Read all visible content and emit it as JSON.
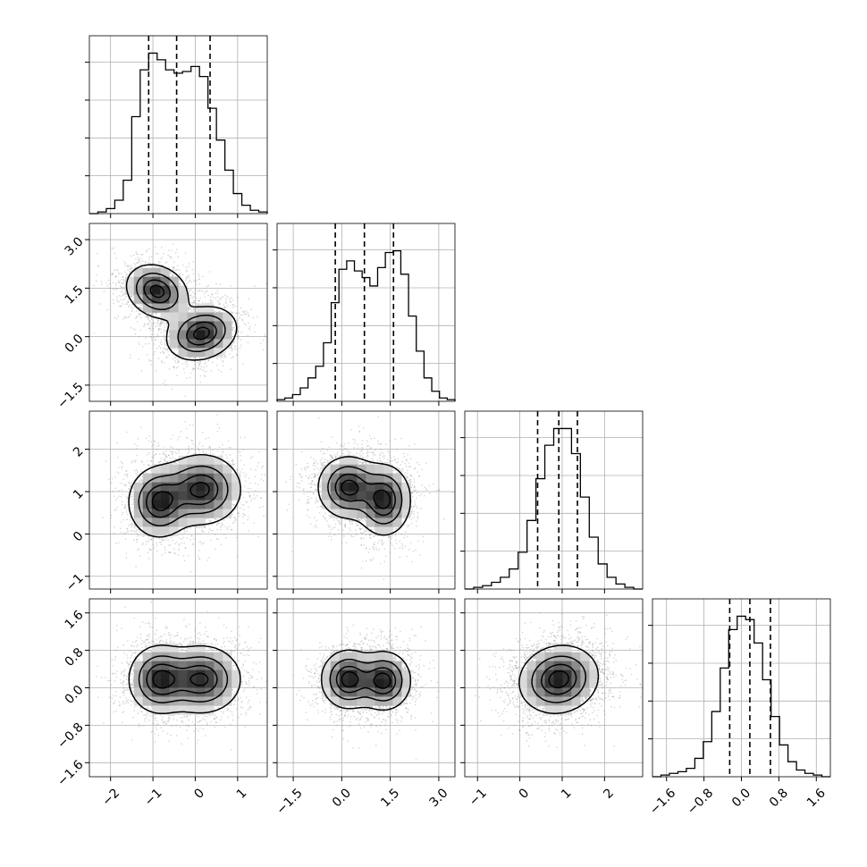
{
  "chart_data": {
    "type": "corner",
    "title": "",
    "variables": [
      {
        "name": "",
        "range": [
          -2.5,
          1.7
        ],
        "ticks": [
          -2,
          -1,
          0,
          1
        ],
        "tick_labels": [
          "−2",
          "−1",
          "0",
          "1"
        ],
        "quantiles": [
          -1.1,
          -0.44,
          0.35
        ],
        "hist": [
          0.0,
          0.01,
          0.03,
          0.08,
          0.2,
          0.58,
          0.86,
          0.96,
          0.92,
          0.86,
          0.84,
          0.85,
          0.88,
          0.82,
          0.63,
          0.44,
          0.26,
          0.12,
          0.05,
          0.02,
          0.01
        ]
      },
      {
        "name": "",
        "range": [
          -2.0,
          3.5
        ],
        "ticks": [
          -1.5,
          0.0,
          1.5,
          3.0
        ],
        "tick_labels": [
          "−1.5",
          "0.0",
          "1.5",
          "3.0"
        ],
        "quantiles": [
          -0.2,
          0.7,
          1.6
        ],
        "hist": [
          0.01,
          0.02,
          0.04,
          0.08,
          0.14,
          0.21,
          0.35,
          0.59,
          0.79,
          0.84,
          0.78,
          0.74,
          0.69,
          0.8,
          0.89,
          0.9,
          0.76,
          0.51,
          0.3,
          0.14,
          0.06,
          0.02,
          0.01
        ]
      },
      {
        "name": "",
        "range": [
          -1.3,
          2.9
        ],
        "ticks": [
          -1,
          0,
          1,
          2
        ],
        "tick_labels": [
          "−1",
          "0",
          "1",
          "2"
        ],
        "quantiles": [
          0.42,
          0.92,
          1.36
        ],
        "hist": [
          0.0,
          0.01,
          0.02,
          0.04,
          0.07,
          0.12,
          0.22,
          0.41,
          0.66,
          0.86,
          0.96,
          0.96,
          0.81,
          0.55,
          0.31,
          0.15,
          0.07,
          0.03,
          0.01,
          0.0
        ]
      },
      {
        "name": "",
        "range": [
          -1.9,
          1.9
        ],
        "ticks": [
          -1.6,
          -0.8,
          0.0,
          0.8,
          1.6
        ],
        "tick_labels": [
          "−1.6",
          "−0.8",
          "0.0",
          "0.8",
          "1.6"
        ],
        "quantiles": [
          -0.25,
          0.18,
          0.62
        ],
        "hist": [
          0.0,
          0.01,
          0.02,
          0.03,
          0.05,
          0.11,
          0.21,
          0.39,
          0.65,
          0.88,
          0.96,
          0.94,
          0.8,
          0.58,
          0.36,
          0.19,
          0.09,
          0.04,
          0.02,
          0.01,
          0.0
        ]
      }
    ],
    "pairs": [
      {
        "x": 0,
        "y": 1,
        "modes": [
          {
            "mx": -0.9,
            "my": 1.4,
            "sx": 0.35,
            "sy": 0.4,
            "r": -0.2
          },
          {
            "mx": 0.15,
            "my": 0.1,
            "sx": 0.4,
            "sy": 0.4,
            "r": 0.2
          }
        ]
      },
      {
        "x": 0,
        "y": 2,
        "modes": [
          {
            "mx": -0.85,
            "my": 0.75,
            "sx": 0.35,
            "sy": 0.4,
            "r": 0.0
          },
          {
            "mx": 0.15,
            "my": 1.05,
            "sx": 0.45,
            "sy": 0.4,
            "r": 0.0
          }
        ]
      },
      {
        "x": 1,
        "y": 2,
        "modes": [
          {
            "mx": 0.2,
            "my": 1.1,
            "sx": 0.45,
            "sy": 0.35,
            "r": 0.0
          },
          {
            "mx": 1.3,
            "my": 0.8,
            "sx": 0.4,
            "sy": 0.4,
            "r": 0.0
          }
        ]
      },
      {
        "x": 0,
        "y": 3,
        "modes": [
          {
            "mx": -0.85,
            "my": 0.18,
            "sx": 0.35,
            "sy": 0.35,
            "r": 0.0
          },
          {
            "mx": 0.15,
            "my": 0.18,
            "sx": 0.45,
            "sy": 0.35,
            "r": 0.0
          }
        ]
      },
      {
        "x": 1,
        "y": 3,
        "modes": [
          {
            "mx": 0.2,
            "my": 0.18,
            "sx": 0.4,
            "sy": 0.3,
            "r": 0.0
          },
          {
            "mx": 1.3,
            "my": 0.15,
            "sx": 0.4,
            "sy": 0.3,
            "r": 0.0
          }
        ]
      },
      {
        "x": 2,
        "y": 3,
        "modes": [
          {
            "mx": 0.92,
            "my": 0.18,
            "sx": 0.45,
            "sy": 0.35,
            "r": 0.1
          }
        ]
      }
    ],
    "grid": true,
    "colors": {
      "line": "#000000",
      "grid": "#b0b0b0",
      "density": "#000000"
    }
  }
}
